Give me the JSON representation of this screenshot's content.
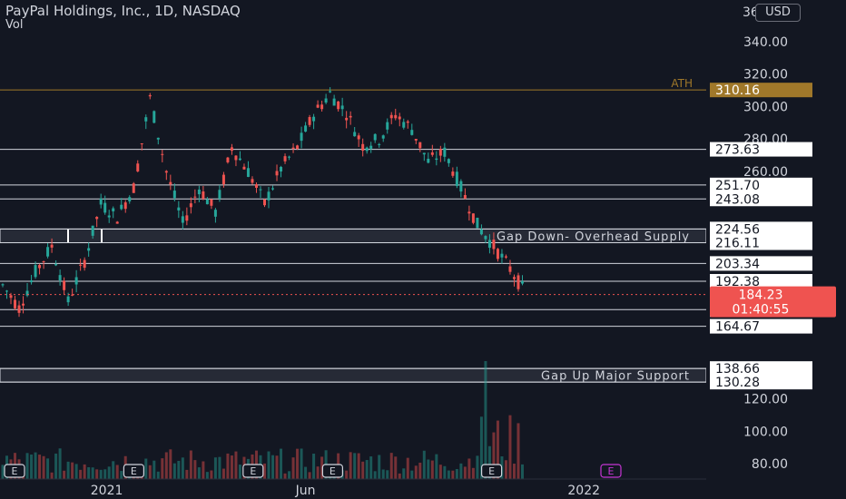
{
  "header": {
    "title": "PayPal Holdings, Inc., 1D, NASDAQ",
    "indicator": "Vol",
    "currency": "USD",
    "top_tick": "36"
  },
  "chart_data": {
    "type": "candlestick",
    "ylim": [
      75,
      360
    ],
    "y_ticks": [
      80,
      100,
      120,
      260,
      280,
      300,
      320,
      340
    ],
    "x_tick_labels": [
      {
        "label": "2021",
        "date": "2021-01"
      },
      {
        "label": "Jun",
        "date": "2021-06"
      },
      {
        "label": "2022",
        "date": "2022-01"
      }
    ],
    "last_price": {
      "value": "184.23",
      "countdown": "01:40:55"
    },
    "levels": [
      {
        "value": 310.16,
        "label": "310.16",
        "color": "#a0782a",
        "note": "ATH"
      },
      {
        "value": 273.63,
        "label": "273.63"
      },
      {
        "value": 251.7,
        "label": "251.70"
      },
      {
        "value": 243.08,
        "label": "243.08"
      },
      {
        "value": 224.56,
        "label": "224.56"
      },
      {
        "value": 216.11,
        "label": "216.11"
      },
      {
        "value": 203.34,
        "label": "203.34"
      },
      {
        "value": 192.38,
        "label": "192.38"
      },
      {
        "value": 174.92,
        "label": "174.92"
      },
      {
        "value": 164.67,
        "label": "164.67"
      },
      {
        "value": 138.66,
        "label": "138.66"
      },
      {
        "value": 130.28,
        "label": "130.28"
      }
    ],
    "zones": [
      {
        "from": 216.11,
        "to": 224.56,
        "label": "Gap Down- Overhead Supply"
      },
      {
        "from": 130.28,
        "to": 138.66,
        "label": "Gap Up Major Support"
      }
    ],
    "price_path": [
      {
        "date": "2020-12",
        "close": 190
      },
      {
        "date": "2020-12",
        "close": 176
      },
      {
        "date": "2020-12",
        "close": 198
      },
      {
        "date": "2020-12",
        "close": 214
      },
      {
        "date": "2020-12",
        "close": 180
      },
      {
        "date": "2021-01",
        "close": 205
      },
      {
        "date": "2021-01",
        "close": 240
      },
      {
        "date": "2021-01",
        "close": 232
      },
      {
        "date": "2021-02",
        "close": 250
      },
      {
        "date": "2021-02",
        "close": 305
      },
      {
        "date": "2021-02",
        "close": 260
      },
      {
        "date": "2021-03",
        "close": 228
      },
      {
        "date": "2021-03",
        "close": 250
      },
      {
        "date": "2021-03",
        "close": 235
      },
      {
        "date": "2021-04",
        "close": 275
      },
      {
        "date": "2021-04",
        "close": 260
      },
      {
        "date": "2021-05",
        "close": 240
      },
      {
        "date": "2021-05",
        "close": 262
      },
      {
        "date": "2021-06",
        "close": 275
      },
      {
        "date": "2021-06",
        "close": 295
      },
      {
        "date": "2021-07",
        "close": 308
      },
      {
        "date": "2021-07",
        "close": 296
      },
      {
        "date": "2021-08",
        "close": 276
      },
      {
        "date": "2021-08",
        "close": 280
      },
      {
        "date": "2021-08",
        "close": 295
      },
      {
        "date": "2021-09",
        "close": 286
      },
      {
        "date": "2021-09",
        "close": 266
      },
      {
        "date": "2021-09",
        "close": 272
      },
      {
        "date": "2021-10",
        "close": 250
      },
      {
        "date": "2021-10",
        "close": 227
      },
      {
        "date": "2021-11",
        "close": 214
      },
      {
        "date": "2021-11",
        "close": 200
      },
      {
        "date": "2021-11",
        "close": 184
      }
    ],
    "earnings_markers": [
      {
        "label": "E",
        "date": "2020-11"
      },
      {
        "label": "E",
        "date": "2021-02"
      },
      {
        "label": "E",
        "date": "2021-05"
      },
      {
        "label": "E",
        "date": "2021-07"
      },
      {
        "label": "E",
        "date": "2021-11"
      },
      {
        "label": "E",
        "date": "2022-02",
        "upcoming": true
      }
    ],
    "colors": {
      "up": "#26a69a",
      "down": "#ef5350",
      "last_price": "#ef5350",
      "background": "#131722",
      "ath": "#a0782a"
    }
  }
}
